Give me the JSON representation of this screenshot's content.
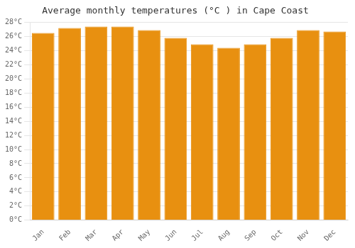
{
  "chart_data": {
    "type": "bar",
    "title": "Average monthly temperatures (°C ) in Cape Coast",
    "categories": [
      "Jan",
      "Feb",
      "Mar",
      "Apr",
      "May",
      "Jun",
      "Jul",
      "Aug",
      "Sep",
      "Oct",
      "Nov",
      "Dec"
    ],
    "values": [
      26.5,
      27.2,
      27.4,
      27.4,
      26.9,
      25.8,
      24.9,
      24.4,
      24.9,
      25.8,
      26.9,
      26.7
    ],
    "color": "#E89010",
    "ylim": [
      0,
      28
    ],
    "yticks": [
      {
        "value": 0,
        "label": "0°C"
      },
      {
        "value": 2,
        "label": "2°C"
      },
      {
        "value": 4,
        "label": "4°C"
      },
      {
        "value": 6,
        "label": "6°C"
      },
      {
        "value": 8,
        "label": "8°C"
      },
      {
        "value": 10,
        "label": "10°C"
      },
      {
        "value": 12,
        "label": "12°C"
      },
      {
        "value": 14,
        "label": "14°C"
      },
      {
        "value": 16,
        "label": "16°C"
      },
      {
        "value": 18,
        "label": "18°C"
      },
      {
        "value": 20,
        "label": "20°C"
      },
      {
        "value": 22,
        "label": "22°C"
      },
      {
        "value": 24,
        "label": "24°C"
      },
      {
        "value": 26,
        "label": "26°C"
      },
      {
        "value": 28,
        "label": "28°C"
      }
    ],
    "grid": true
  }
}
